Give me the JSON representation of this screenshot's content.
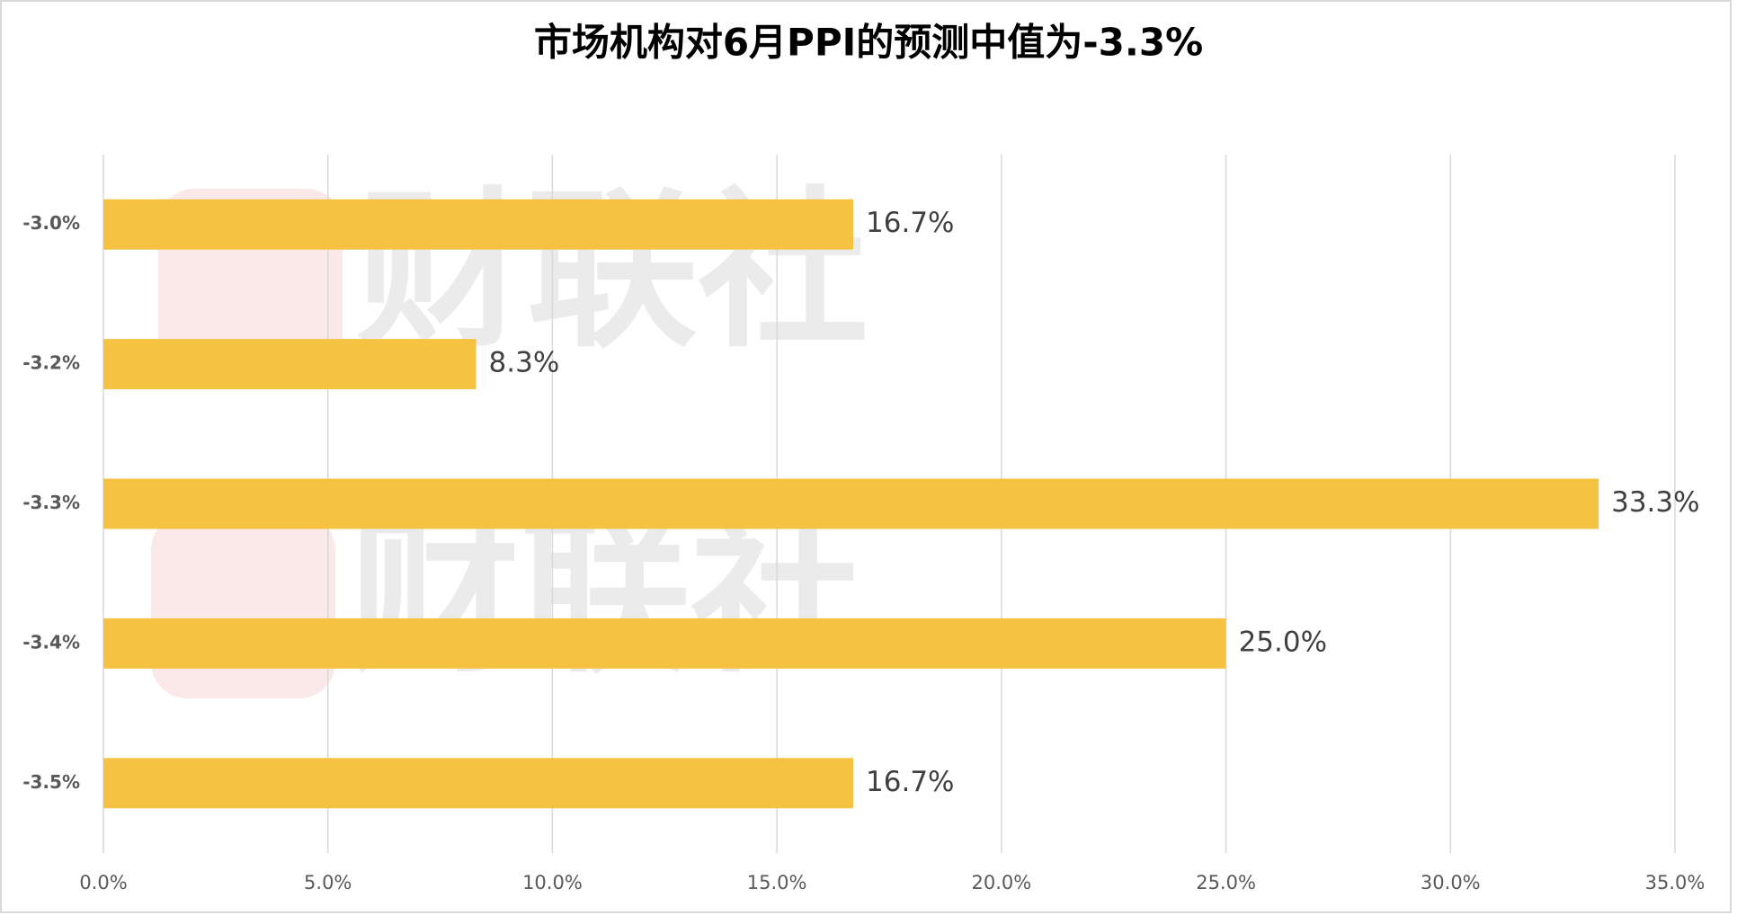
{
  "chart_data": {
    "type": "bar",
    "orientation": "horizontal",
    "title": "市场机构对6月PPI的预测中值为-3.3%",
    "watermark": "财联社",
    "categories": [
      "-3.0%",
      "-3.2%",
      "-3.3%",
      "-3.4%",
      "-3.5%"
    ],
    "values": [
      16.7,
      8.3,
      33.3,
      25.0,
      16.7
    ],
    "value_labels": [
      "16.7%",
      "8.3%",
      "33.3%",
      "25.0%",
      "16.7%"
    ],
    "color": "#f5c242",
    "xlim": [
      0,
      35
    ],
    "xticks": [
      {
        "value": 0,
        "label": "0.0%"
      },
      {
        "value": 5,
        "label": "5.0%"
      },
      {
        "value": 10,
        "label": "10.0%"
      },
      {
        "value": 15,
        "label": "15.0%"
      },
      {
        "value": 20,
        "label": "20.0%"
      },
      {
        "value": 25,
        "label": "25.0%"
      },
      {
        "value": 30,
        "label": "30.0%"
      },
      {
        "value": 35,
        "label": "35.0%"
      }
    ],
    "grid": true
  }
}
